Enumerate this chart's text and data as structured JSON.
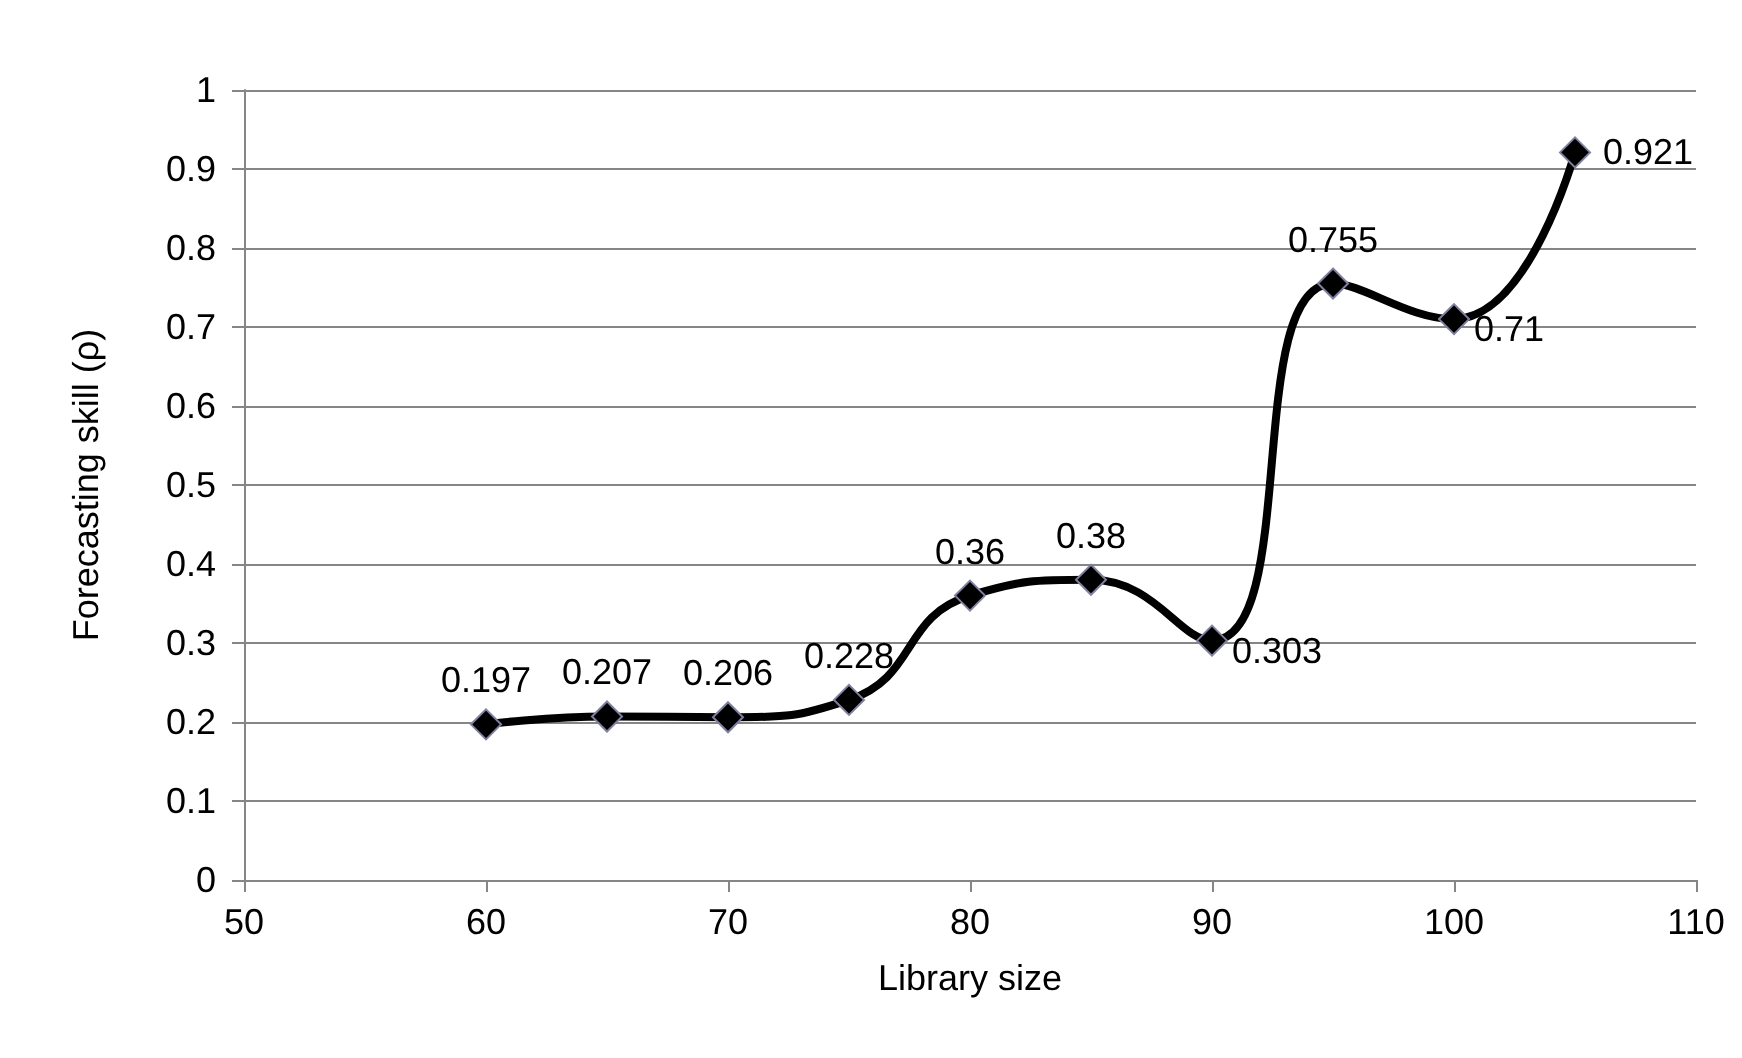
{
  "chart_data": {
    "type": "line",
    "xlabel": "Library size",
    "ylabel": "Forecasting skill (ρ)",
    "x": [
      60,
      65,
      70,
      75,
      80,
      85,
      90,
      95,
      100,
      105
    ],
    "series": [
      {
        "color": "#000000",
        "values": [
          0.197,
          0.207,
          0.206,
          0.228,
          0.36,
          0.38,
          0.303,
          0.755,
          0.71,
          0.921
        ]
      }
    ],
    "xlim": [
      50,
      110
    ],
    "xticks": [
      50,
      60,
      70,
      80,
      90,
      100,
      110
    ],
    "ylim": [
      0,
      1
    ],
    "yticks": [
      0,
      0.1,
      0.2,
      0.3,
      0.4,
      0.5,
      0.6,
      0.7,
      0.8,
      0.9,
      1
    ],
    "grid": "y",
    "marker": "diamond",
    "line_style": "solid",
    "data_labels": true
  }
}
